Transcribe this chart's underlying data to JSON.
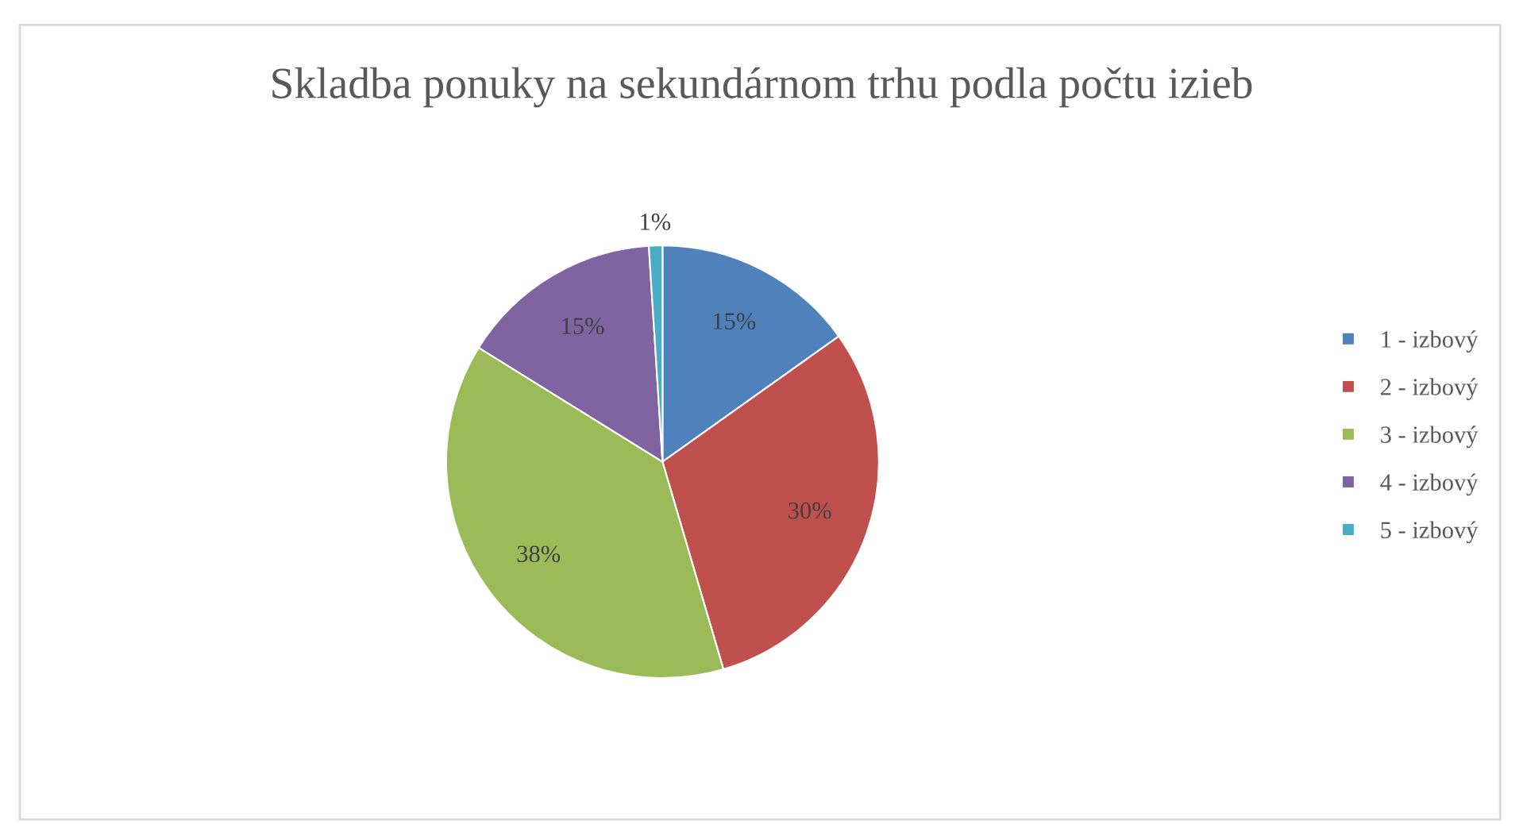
{
  "chart_data": {
    "type": "pie",
    "title": "Skladba ponuky na sekundárnom trhu podla počtu izieb",
    "categories": [
      "1 - izbový",
      "2 - izbový",
      "3 - izbový",
      "4 - izbový",
      "5 - izbový"
    ],
    "values": [
      15,
      30,
      38,
      15,
      1
    ],
    "colors": [
      "#4f81bd",
      "#c0504d",
      "#9bbb59",
      "#8064a2",
      "#4bacc6"
    ],
    "value_labels": [
      "15%",
      "30%",
      "38%",
      "15%",
      "1%"
    ],
    "legend": "right"
  }
}
